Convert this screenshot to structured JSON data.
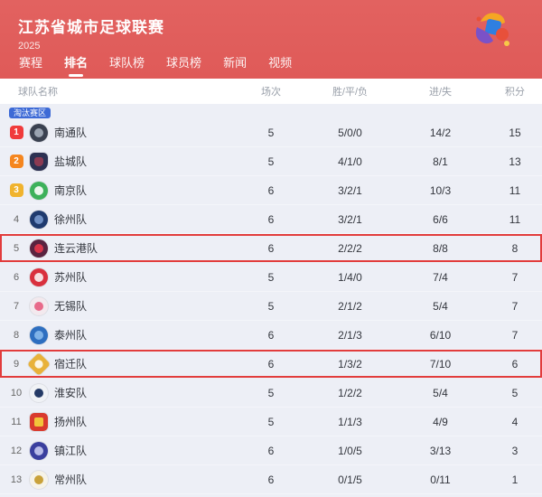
{
  "header": {
    "title": "江苏省城市足球联赛",
    "season": "2025",
    "bg_color": "#df5a58",
    "logo_colors": [
      "#f5a623",
      "#2f7fe0",
      "#7b52c7",
      "#e8503a",
      "#f7c948"
    ],
    "nav": [
      {
        "label": "赛程",
        "active": false
      },
      {
        "label": "排名",
        "active": true
      },
      {
        "label": "球队榜",
        "active": false
      },
      {
        "label": "球员榜",
        "active": false
      },
      {
        "label": "新闻",
        "active": false
      },
      {
        "label": "视频",
        "active": false
      }
    ]
  },
  "table": {
    "columns": [
      "球队名称",
      "场次",
      "胜/平/负",
      "进/失",
      "积分"
    ],
    "zone_badge": {
      "label": "淘汰赛区",
      "color": "#3d6ad6"
    },
    "highlight_border_color": "#e23c3c",
    "rank_badge_colors": {
      "1": "#f03b3b",
      "2": "#f5861f",
      "3": "#f0b32e"
    },
    "rows": [
      {
        "rank": 1,
        "team": "南通队",
        "played": "5",
        "wdl": "5/0/0",
        "goals": "14/2",
        "points": "15",
        "highlighted": false,
        "logo": {
          "shape": "circle",
          "bg": "#3a4150",
          "inner": "#9aa3b0"
        }
      },
      {
        "rank": 2,
        "team": "盐城队",
        "played": "5",
        "wdl": "4/1/0",
        "goals": "8/1",
        "points": "13",
        "highlighted": false,
        "logo": {
          "shape": "shield",
          "bg": "#2d3152",
          "inner": "#8c3a52"
        }
      },
      {
        "rank": 3,
        "team": "南京队",
        "played": "6",
        "wdl": "3/2/1",
        "goals": "10/3",
        "points": "11",
        "highlighted": false,
        "logo": {
          "shape": "circle",
          "bg": "#3db15a",
          "inner": "#eaf6ec"
        }
      },
      {
        "rank": 4,
        "team": "徐州队",
        "played": "6",
        "wdl": "3/2/1",
        "goals": "6/6",
        "points": "11",
        "highlighted": false,
        "logo": {
          "shape": "circle",
          "bg": "#1f3a6e",
          "inner": "#6f8fc4"
        }
      },
      {
        "rank": 5,
        "team": "连云港队",
        "played": "6",
        "wdl": "2/2/2",
        "goals": "8/8",
        "points": "8",
        "highlighted": true,
        "logo": {
          "shape": "circle",
          "bg": "#5a2340",
          "inner": "#d9344a"
        }
      },
      {
        "rank": 6,
        "team": "苏州队",
        "played": "5",
        "wdl": "1/4/0",
        "goals": "7/4",
        "points": "7",
        "highlighted": false,
        "logo": {
          "shape": "circle",
          "bg": "#d9303e",
          "inner": "#f6dfe1"
        }
      },
      {
        "rank": 7,
        "team": "无锡队",
        "played": "5",
        "wdl": "2/1/2",
        "goals": "5/4",
        "points": "7",
        "highlighted": false,
        "logo": {
          "shape": "circle",
          "bg": "#f3e9ee",
          "inner": "#e86a8a"
        }
      },
      {
        "rank": 8,
        "team": "泰州队",
        "played": "6",
        "wdl": "2/1/3",
        "goals": "6/10",
        "points": "7",
        "highlighted": false,
        "logo": {
          "shape": "circle",
          "bg": "#2e6fc0",
          "inner": "#7fb3e8"
        }
      },
      {
        "rank": 9,
        "team": "宿迁队",
        "played": "6",
        "wdl": "1/3/2",
        "goals": "7/10",
        "points": "6",
        "highlighted": true,
        "logo": {
          "shape": "diamond",
          "bg": "#e8b23a",
          "inner": "#fdf6e3"
        }
      },
      {
        "rank": 10,
        "team": "淮安队",
        "played": "5",
        "wdl": "1/2/2",
        "goals": "5/4",
        "points": "5",
        "highlighted": false,
        "logo": {
          "shape": "circle",
          "bg": "#f0f2f6",
          "inner": "#243a66"
        }
      },
      {
        "rank": 11,
        "team": "扬州队",
        "played": "5",
        "wdl": "1/1/3",
        "goals": "4/9",
        "points": "4",
        "highlighted": false,
        "logo": {
          "shape": "square",
          "bg": "#d93a2e",
          "inner": "#f2c43a"
        }
      },
      {
        "rank": 12,
        "team": "镇江队",
        "played": "6",
        "wdl": "1/0/5",
        "goals": "3/13",
        "points": "3",
        "highlighted": false,
        "logo": {
          "shape": "circle",
          "bg": "#3a3f9e",
          "inner": "#b9bce8"
        }
      },
      {
        "rank": 13,
        "team": "常州队",
        "played": "6",
        "wdl": "0/1/5",
        "goals": "0/11",
        "points": "1",
        "highlighted": false,
        "logo": {
          "shape": "circle",
          "bg": "#f6f3e8",
          "inner": "#c9a23a"
        }
      }
    ]
  }
}
